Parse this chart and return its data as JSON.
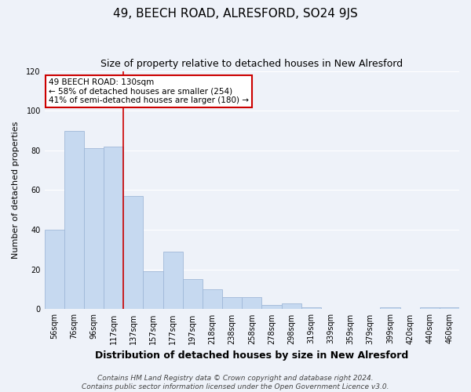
{
  "title": "49, BEECH ROAD, ALRESFORD, SO24 9JS",
  "subtitle": "Size of property relative to detached houses in New Alresford",
  "xlabel": "Distribution of detached houses by size in New Alresford",
  "ylabel": "Number of detached properties",
  "categories": [
    "56sqm",
    "76sqm",
    "96sqm",
    "117sqm",
    "137sqm",
    "157sqm",
    "177sqm",
    "197sqm",
    "218sqm",
    "238sqm",
    "258sqm",
    "278sqm",
    "298sqm",
    "319sqm",
    "339sqm",
    "359sqm",
    "379sqm",
    "399sqm",
    "420sqm",
    "440sqm",
    "460sqm"
  ],
  "values": [
    40,
    90,
    81,
    82,
    57,
    19,
    29,
    15,
    10,
    6,
    6,
    2,
    3,
    1,
    0,
    0,
    0,
    1,
    0,
    1,
    1
  ],
  "bar_color": "#c6d9f0",
  "bar_edge_color": "#a0b8d8",
  "vline_bar_index": 3,
  "vline_color": "#cc0000",
  "ylim": [
    0,
    120
  ],
  "yticks": [
    0,
    20,
    40,
    60,
    80,
    100,
    120
  ],
  "annotation_title": "49 BEECH ROAD: 130sqm",
  "annotation_line1": "← 58% of detached houses are smaller (254)",
  "annotation_line2": "41% of semi-detached houses are larger (180) →",
  "annotation_box_color": "#ffffff",
  "annotation_box_edge": "#cc0000",
  "footer1": "Contains HM Land Registry data © Crown copyright and database right 2024.",
  "footer2": "Contains public sector information licensed under the Open Government Licence v3.0.",
  "background_color": "#eef2f9",
  "grid_color": "#ffffff",
  "title_fontsize": 11,
  "subtitle_fontsize": 9,
  "xlabel_fontsize": 9,
  "ylabel_fontsize": 8,
  "tick_fontsize": 7,
  "annot_fontsize": 7.5,
  "footer_fontsize": 6.5
}
